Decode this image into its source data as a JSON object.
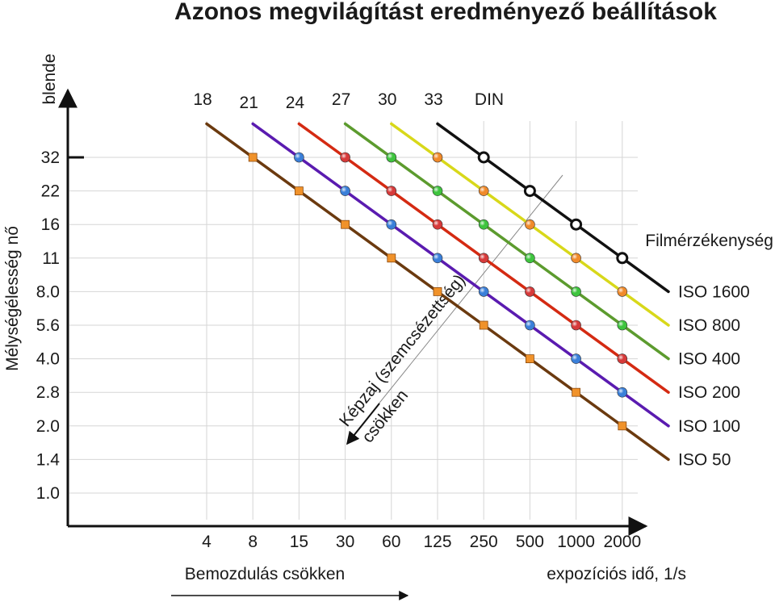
{
  "chart_data": {
    "type": "line",
    "title": "Azonos megvilágítást eredményező beállítások",
    "y_axis": {
      "unit_label": "blende",
      "label": "Mélységélesség nő",
      "ticks": [
        "32",
        "22",
        "16",
        "11",
        "8.0",
        "5.6",
        "4.0",
        "2.8",
        "2.0",
        "1.4",
        "1.0"
      ]
    },
    "x_axis": {
      "ticks": [
        "4",
        "8",
        "15",
        "30",
        "60",
        "125",
        "250",
        "500",
        "1000",
        "2000"
      ],
      "label": "expozíciós idő, 1/s",
      "arrow_label": "Bemozdulás csökken"
    },
    "din_scale": {
      "ticks": [
        "18",
        "21",
        "24",
        "27",
        "30",
        "33"
      ],
      "label": "DIN"
    },
    "legend_title": "Filmérzékenység",
    "noise_annotation": [
      "Képzaj (szemcsézettség)",
      "csökken"
    ],
    "series": [
      {
        "name": "ISO 50",
        "din": "18",
        "color": "#6b3a0f",
        "marker_color": "#f0922a",
        "points": [
          [
            "8",
            "32"
          ],
          [
            "15",
            "22"
          ],
          [
            "30",
            "16"
          ],
          [
            "60",
            "11"
          ],
          [
            "125",
            "8.0"
          ],
          [
            "250",
            "5.6"
          ],
          [
            "500",
            "4.0"
          ],
          [
            "1000",
            "2.8"
          ],
          [
            "2000",
            "2.0"
          ]
        ]
      },
      {
        "name": "ISO 100",
        "din": "21",
        "color": "#5a1bb0",
        "marker_color": "#3a7fd9",
        "points": [
          [
            "15",
            "32"
          ],
          [
            "30",
            "22"
          ],
          [
            "60",
            "16"
          ],
          [
            "125",
            "11"
          ],
          [
            "250",
            "8.0"
          ],
          [
            "500",
            "5.6"
          ],
          [
            "1000",
            "4.0"
          ],
          [
            "2000",
            "2.8"
          ]
        ]
      },
      {
        "name": "ISO 200",
        "din": "24",
        "color": "#d42a12",
        "marker_color": "#d63a3a",
        "points": [
          [
            "30",
            "32"
          ],
          [
            "60",
            "22"
          ],
          [
            "125",
            "16"
          ],
          [
            "250",
            "11"
          ],
          [
            "500",
            "8.0"
          ],
          [
            "1000",
            "5.6"
          ],
          [
            "2000",
            "4.0"
          ]
        ]
      },
      {
        "name": "ISO 400",
        "din": "27",
        "color": "#5c9b2e",
        "marker_color": "#3ec43e",
        "points": [
          [
            "60",
            "32"
          ],
          [
            "125",
            "22"
          ],
          [
            "250",
            "16"
          ],
          [
            "500",
            "11"
          ],
          [
            "1000",
            "8.0"
          ],
          [
            "2000",
            "5.6"
          ]
        ]
      },
      {
        "name": "ISO 800",
        "din": "30",
        "color": "#d8d81a",
        "marker_color": "#f08a2a",
        "points": [
          [
            "125",
            "32"
          ],
          [
            "250",
            "22"
          ],
          [
            "500",
            "16"
          ],
          [
            "1000",
            "11"
          ],
          [
            "2000",
            "8.0"
          ]
        ]
      },
      {
        "name": "ISO 1600",
        "din": "33",
        "color": "#111111",
        "marker_color": "#ffffff",
        "points": [
          [
            "250",
            "32"
          ],
          [
            "500",
            "22"
          ],
          [
            "1000",
            "16"
          ],
          [
            "2000",
            "11"
          ]
        ]
      }
    ]
  }
}
